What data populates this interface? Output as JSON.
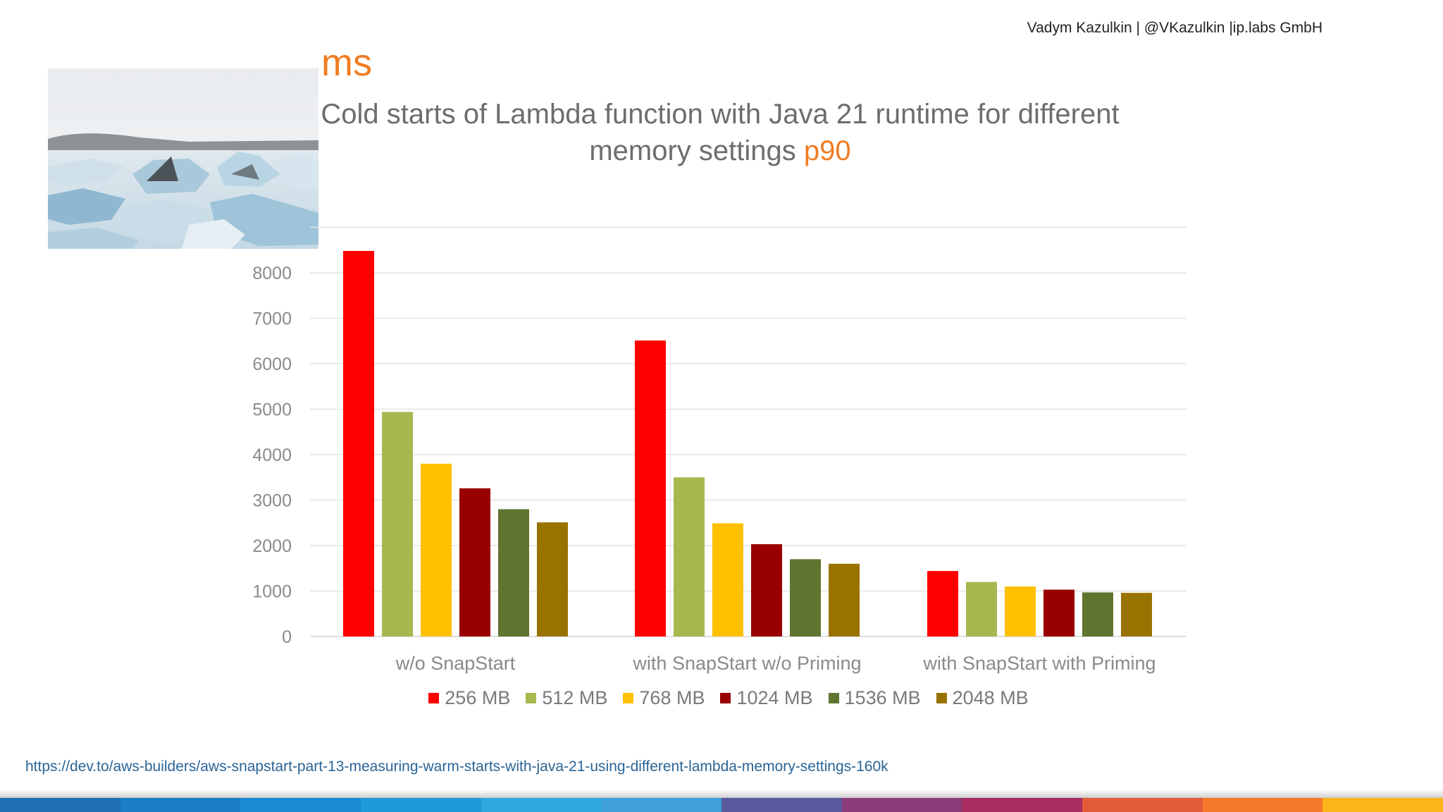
{
  "header": {
    "author": "Vadym Kazulkin | @VKazulkin |ip.labs GmbH"
  },
  "slide": {
    "unit": "ms",
    "title_main": "Cold starts of Lambda function with Java 21 runtime for different memory settings",
    "title_accent": "p90",
    "accent_color": "#f07c22",
    "source_link": "https://dev.to/aws-builders/aws-snapstart-part-13-measuring-warm-starts-with-java-21-using-different-lambda-memory-settings-160k"
  },
  "image": {
    "icon": "glacier-ice-photo"
  },
  "chart_data": {
    "type": "bar",
    "categories": [
      "w/o SnapStart",
      "with SnapStart w/o Priming",
      "with SnapStart with Priming"
    ],
    "series": [
      {
        "name": "256 MB",
        "color": "#ff0000",
        "values": [
          8480,
          6510,
          1440
        ]
      },
      {
        "name": "512 MB",
        "color": "#a5b94f",
        "values": [
          4940,
          3500,
          1200
        ]
      },
      {
        "name": "768 MB",
        "color": "#ffc000",
        "values": [
          3800,
          2490,
          1100
        ]
      },
      {
        "name": "1024 MB",
        "color": "#990000",
        "values": [
          3260,
          2030,
          1030
        ]
      },
      {
        "name": "1536 MB",
        "color": "#607530",
        "values": [
          2800,
          1700,
          970
        ]
      },
      {
        "name": "2048 MB",
        "color": "#997300",
        "values": [
          2510,
          1600,
          960
        ]
      }
    ],
    "yticks": [
      0,
      1000,
      2000,
      3000,
      4000,
      5000,
      6000,
      7000,
      8000
    ],
    "ylim": [
      0,
      9000
    ],
    "grid": true,
    "legend": "bottom"
  },
  "footer": {
    "colors": [
      "#1f6fb5",
      "#1b7dc4",
      "#1a8bd2",
      "#1f9ad9",
      "#2ea7df",
      "#3f9fd8",
      "#5b5a9e",
      "#8a3c7a",
      "#a82d60",
      "#e25a3a",
      "#f47a2a",
      "#fbb51a"
    ]
  }
}
